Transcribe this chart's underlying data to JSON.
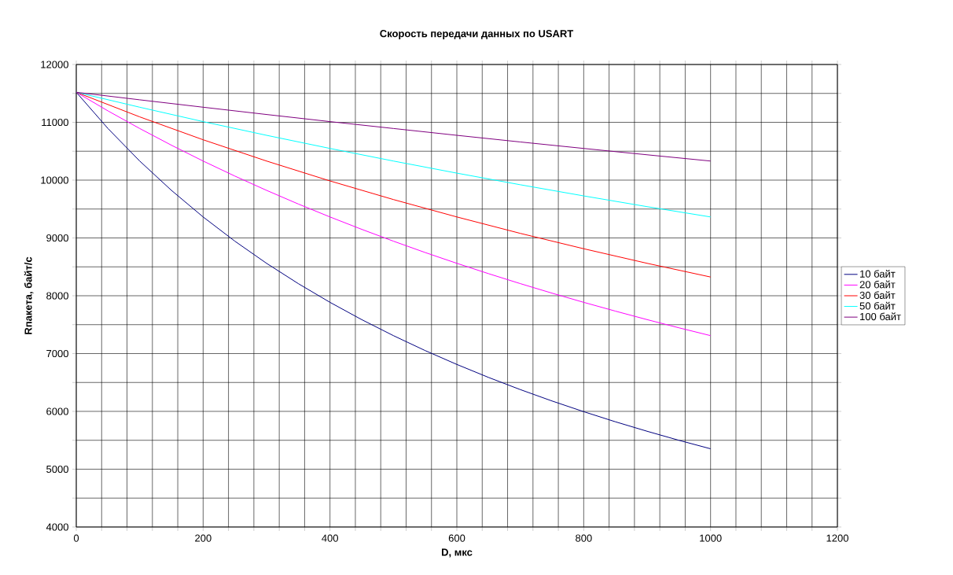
{
  "chart_data": {
    "type": "line",
    "title": "Скорость передачи данных по USART",
    "xlabel": "D, мкс",
    "ylabel": "Rпакета, байт/с",
    "xlim": [
      0,
      1200
    ],
    "ylim": [
      4000,
      12000
    ],
    "xticks": [
      0,
      {
        "value": 40,
        "label": null
      },
      {
        "value": 80,
        "label": null
      },
      {
        "value": 120,
        "label": null
      },
      {
        "value": 160,
        "label": null
      },
      200,
      {
        "value": 240,
        "label": null
      },
      {
        "value": 280,
        "label": null
      },
      {
        "value": 320,
        "label": null
      },
      {
        "value": 360,
        "label": null
      },
      400,
      {
        "value": 440,
        "label": null
      },
      {
        "value": 480,
        "label": null
      },
      {
        "value": 520,
        "label": null
      },
      {
        "value": 560,
        "label": null
      },
      600,
      {
        "value": 640,
        "label": null
      },
      {
        "value": 680,
        "label": null
      },
      {
        "value": 720,
        "label": null
      },
      {
        "value": 760,
        "label": null
      },
      800,
      {
        "value": 840,
        "label": null
      },
      {
        "value": 880,
        "label": null
      },
      {
        "value": 920,
        "label": null
      },
      {
        "value": 960,
        "label": null
      },
      1000,
      {
        "value": 1040,
        "label": null
      },
      {
        "value": 1080,
        "label": null
      },
      {
        "value": 1120,
        "label": null
      },
      {
        "value": 1160,
        "label": null
      },
      1200
    ],
    "yticks": [
      4000,
      {
        "value": 4500,
        "label": null
      },
      5000,
      {
        "value": 5500,
        "label": null
      },
      6000,
      {
        "value": 6500,
        "label": null
      },
      7000,
      {
        "value": 7500,
        "label": null
      },
      8000,
      {
        "value": 8500,
        "label": null
      },
      9000,
      {
        "value": 9500,
        "label": null
      },
      10000,
      {
        "value": 10500,
        "label": null
      },
      11000,
      {
        "value": 11500,
        "label": null
      },
      12000
    ],
    "grid": true,
    "legend": "right",
    "marker": "none",
    "line_style": "solid",
    "series": [
      {
        "name": "10 байт",
        "color": "#000080",
        "x": [
          0,
          50,
          100,
          150,
          200,
          250,
          300,
          350,
          400,
          450,
          500,
          550,
          600,
          650,
          700,
          750,
          800,
          850,
          900,
          950,
          1000
        ],
        "values": [
          11520,
          10892,
          10330,
          9823,
          9363,
          8944,
          8561,
          8210,
          7886,
          7587,
          7310,
          7052,
          6812,
          6587,
          6377,
          6180,
          5995,
          5820,
          5656,
          5500,
          5353
        ]
      },
      {
        "name": "20 байт",
        "color": "#ff00ff",
        "x": [
          0,
          50,
          100,
          150,
          200,
          250,
          300,
          350,
          400,
          450,
          500,
          550,
          600,
          650,
          700,
          750,
          800,
          850,
          900,
          950,
          1000
        ],
        "values": [
          11520,
          11197,
          10893,
          10604,
          10330,
          10070,
          9823,
          9587,
          9363,
          9149,
          8944,
          8748,
          8561,
          8382,
          8210,
          8045,
          7886,
          7734,
          7587,
          7446,
          7310
        ]
      },
      {
        "name": "30 байт",
        "color": "#ff0000",
        "x": [
          0,
          100,
          200,
          300,
          400,
          500,
          600,
          700,
          800,
          900,
          1000
        ],
        "values": [
          11520,
          11094,
          10698,
          10330,
          9986,
          9664,
          9363,
          9079,
          8813,
          8561,
          8324
        ]
      },
      {
        "name": "50 байт",
        "color": "#00ffff",
        "x": [
          0,
          100,
          200,
          300,
          400,
          500,
          600,
          700,
          800,
          900,
          1000
        ],
        "values": [
          11520,
          11261,
          11012,
          10775,
          10548,
          10330,
          10121,
          9920,
          9727,
          9541,
          9363
        ]
      },
      {
        "name": "100 байт",
        "color": "#800080",
        "x": [
          0,
          100,
          200,
          300,
          400,
          500,
          600,
          700,
          800,
          900,
          1000
        ],
        "values": [
          11520,
          11389,
          11261,
          11135,
          11012,
          10893,
          10775,
          10660,
          10548,
          10438,
          10330
        ]
      }
    ]
  }
}
